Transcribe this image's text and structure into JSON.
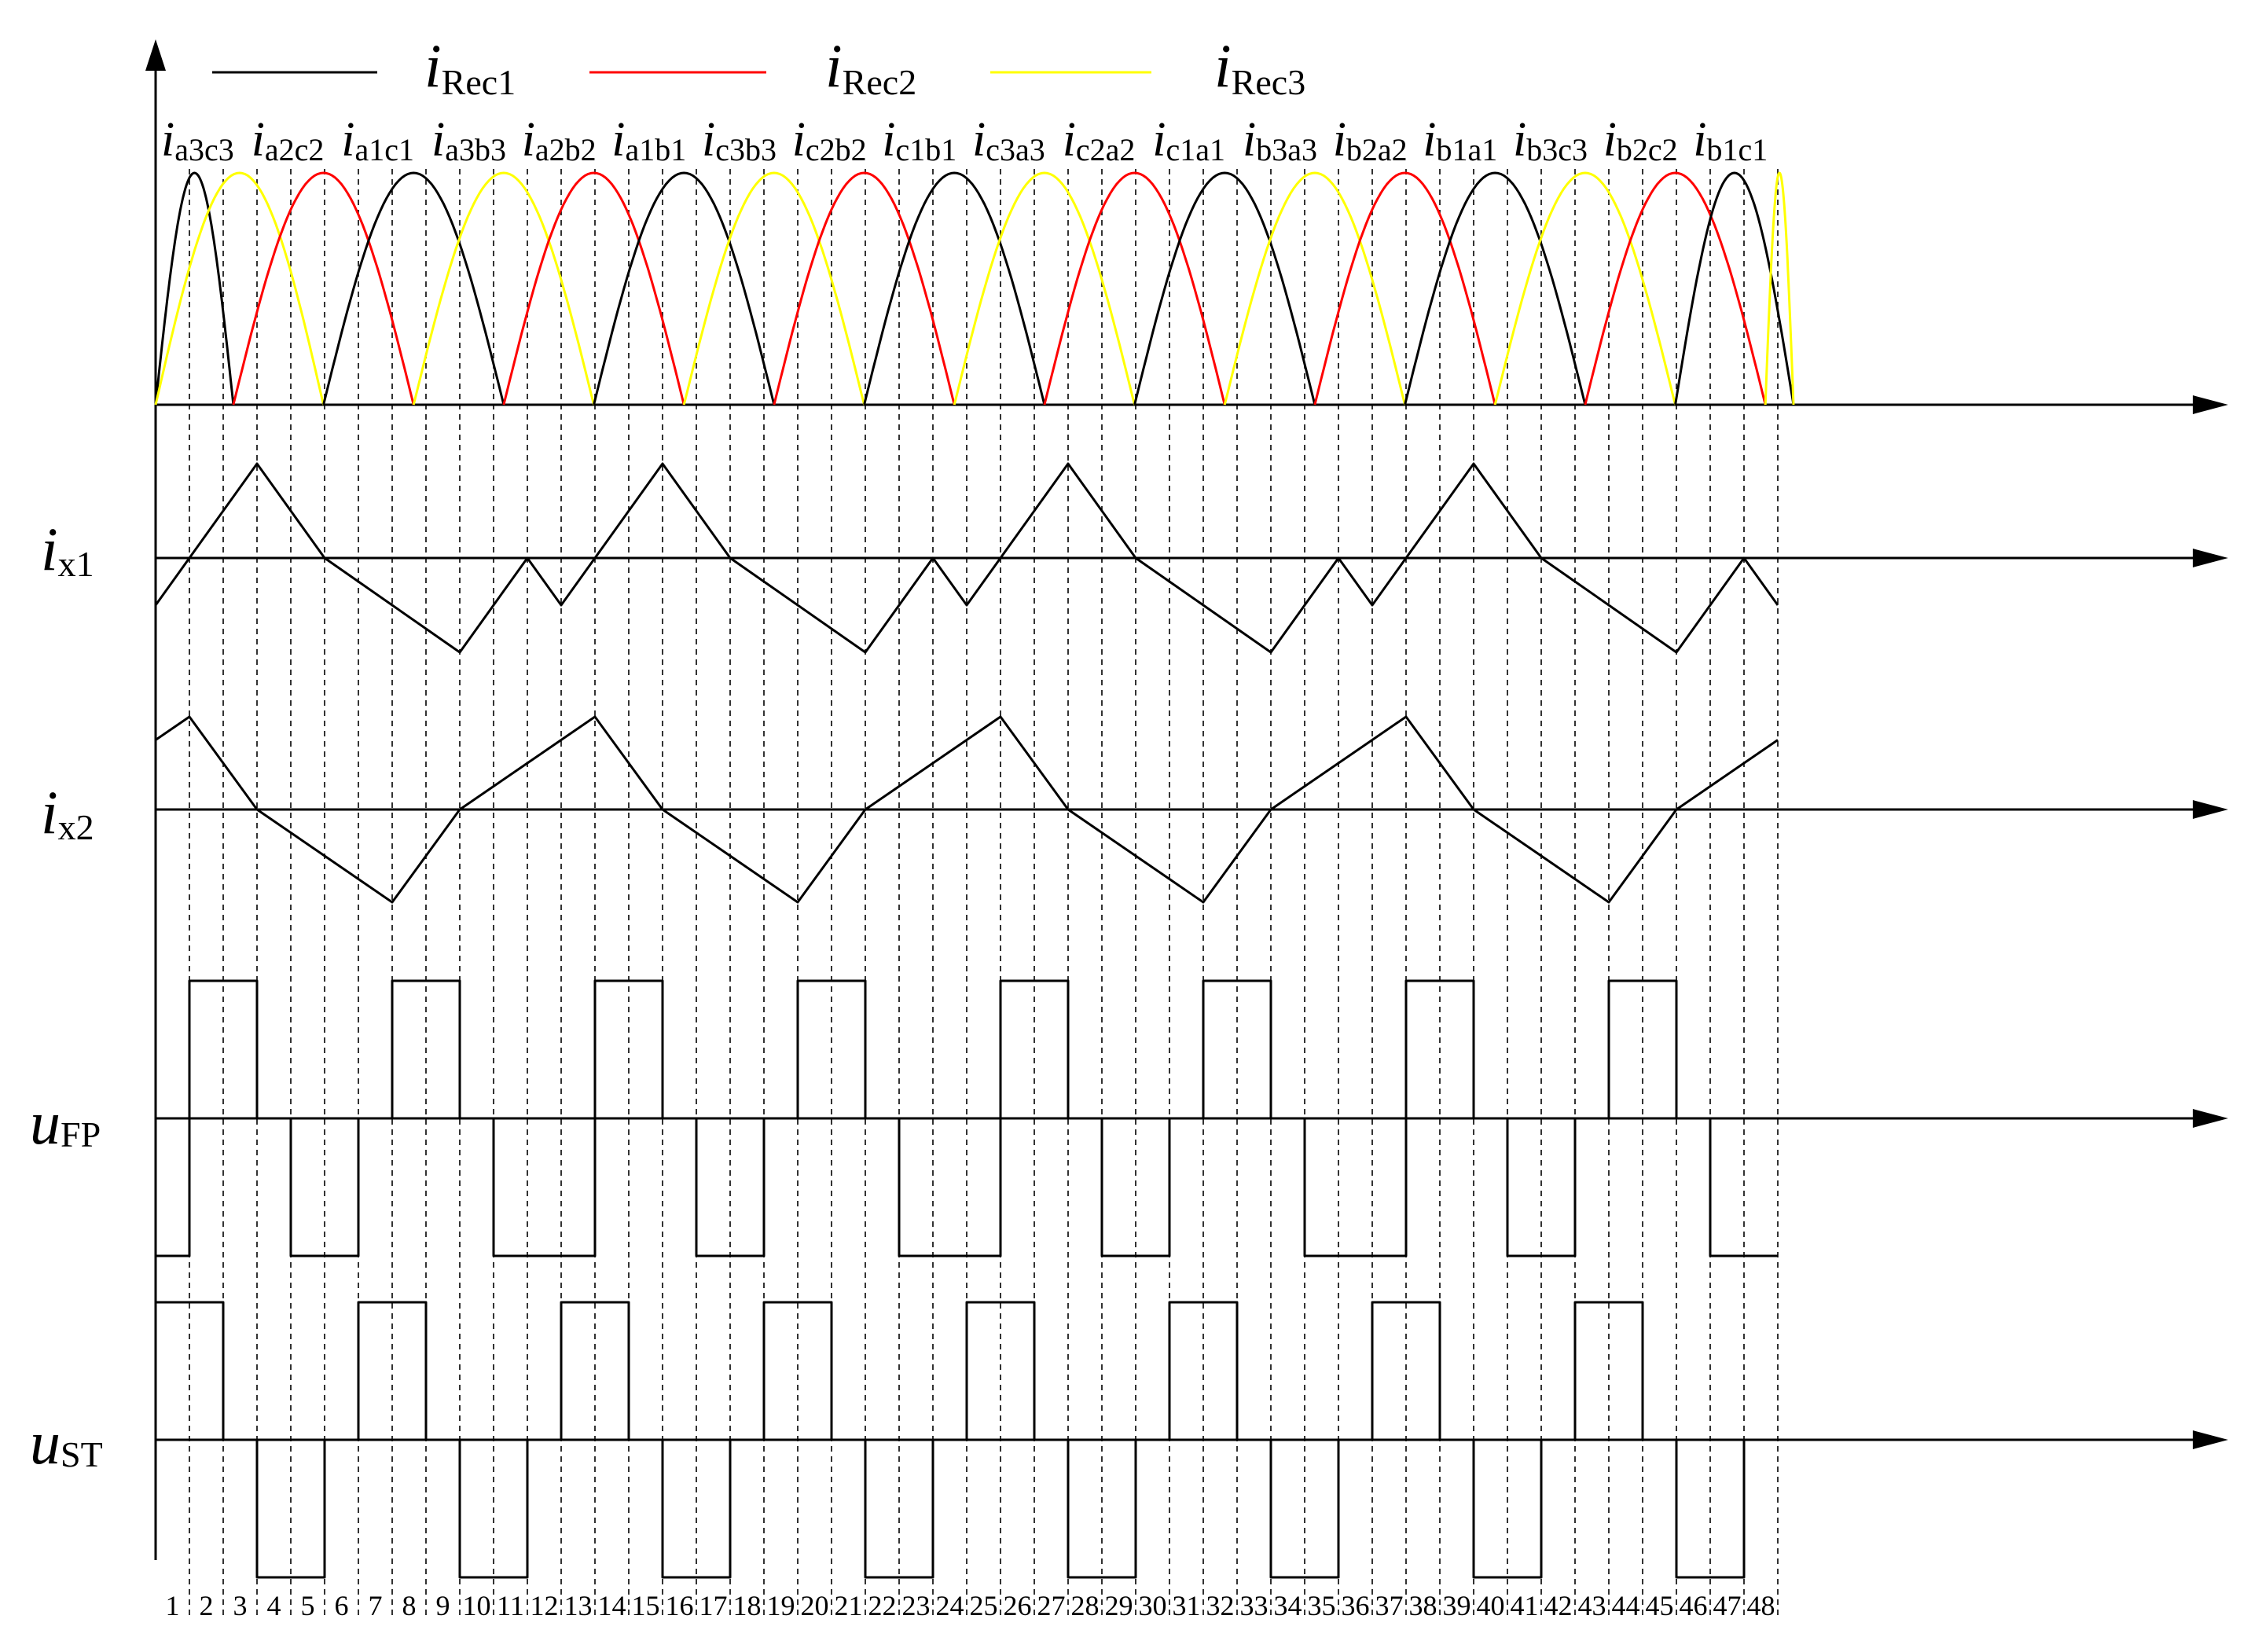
{
  "legend": [
    {
      "symbol": "i",
      "subscript": "Rec1",
      "color": "#000000"
    },
    {
      "symbol": "i",
      "subscript": "Rec2",
      "color": "#ff0000"
    },
    {
      "symbol": "i",
      "subscript": "Rec3",
      "color": "#ffff00"
    }
  ],
  "commutation_labels": [
    "a3c3",
    "a2c2",
    "a1c1",
    "a3b3",
    "a2b2",
    "a1b1",
    "c3b3",
    "c2b2",
    "c1b1",
    "c3a3",
    "c2a2",
    "c1a1",
    "b3a3",
    "b2a2",
    "b1a1",
    "b3c3",
    "b2c2",
    "b1c1"
  ],
  "commutation_label_symbol": "i",
  "traces": [
    {
      "id": "i_x1",
      "symbol": "i",
      "subscript": "x1"
    },
    {
      "id": "i_x2",
      "symbol": "i",
      "subscript": "x2"
    },
    {
      "id": "u_FP",
      "symbol": "u",
      "subscript": "FP"
    },
    {
      "id": "u_ST",
      "symbol": "u",
      "subscript": "ST"
    }
  ],
  "interval_numbers": [
    "1",
    "2",
    "3",
    "4",
    "5",
    "6",
    "7",
    "8",
    "9",
    "10",
    "11",
    "12",
    "13",
    "14",
    "15",
    "16",
    "17",
    "18",
    "19",
    "20",
    "21",
    "22",
    "23",
    "24",
    "25",
    "26",
    "27",
    "28",
    "29",
    "30",
    "31",
    "32",
    "33",
    "34",
    "35",
    "36",
    "37",
    "38",
    "39",
    "40",
    "41",
    "42",
    "43",
    "44",
    "45",
    "46",
    "47",
    "48"
  ],
  "colors": {
    "rec1": "#000000",
    "rec2": "#ff0000",
    "rec3": "#ffff00",
    "axes": "#000000",
    "background": "#ffffff"
  },
  "waveform_pattern": {
    "interval_count": 48,
    "rectifier_lobes": 18,
    "lobe_owner_cycle": [
      "rec3",
      "rec2",
      "rec1"
    ],
    "i_x1": {
      "levels": [
        -0.5,
        0,
        0.5,
        1,
        0.5,
        0,
        -0.25,
        -0.5,
        -0.75,
        -1,
        -0.5,
        0
      ],
      "period_intervals": 12
    },
    "i_x2": {
      "levels": [
        0.75,
        1,
        0.5,
        0,
        -0.25,
        -0.5,
        -0.75,
        -1,
        -0.5,
        0,
        0.25,
        0.5
      ],
      "period_intervals": 12
    },
    "u_FP": {
      "sequence": "-1,+1,+1,0,-1,-1,0,+1,+1,0,-1,-1 ..."
    },
    "u_ST": {
      "sequence": "+1,+1,0,-1,-1,0,+1,+1,0,-1,-1,0 ..."
    }
  }
}
